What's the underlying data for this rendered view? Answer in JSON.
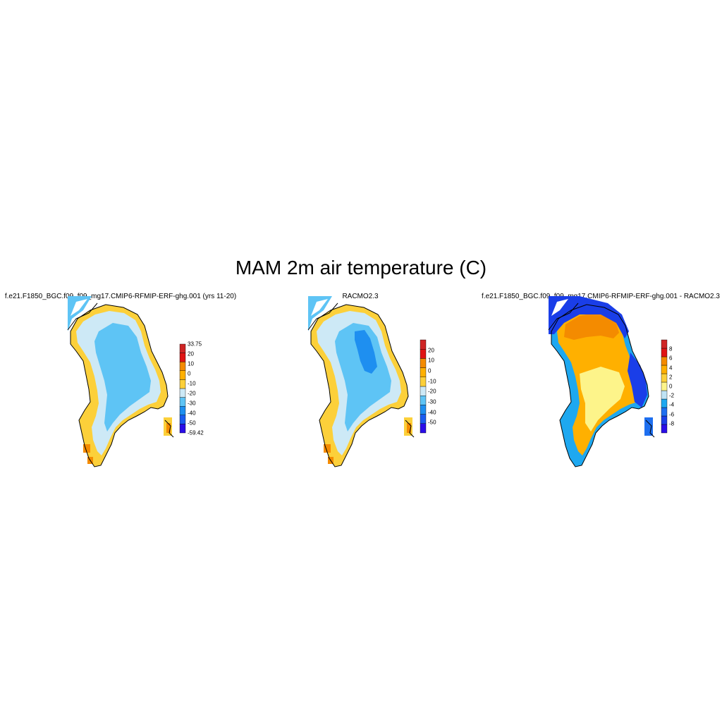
{
  "title": "MAM 2m air temperature (C)",
  "panels": [
    {
      "title": "f.e21.F1850_BGC.f09_f09_mg17.CMIP6-RFMIP-ERF-ghg.001 (yrs 11-20)",
      "colorbar": {
        "colors": [
          "#2a0ee8",
          "#1a5cf0",
          "#1e8ff0",
          "#5ec4f5",
          "#cde9f6",
          "#fcd03a",
          "#ffb000",
          "#f48b00",
          "#e01414",
          "#cf2525"
        ],
        "labels": [
          "-59.42",
          "-50",
          "-40",
          "-30",
          "-20",
          "-10",
          "0",
          "10",
          "20",
          "33.75"
        ]
      },
      "field_class": "model",
      "dominant_color": "#5ec4f5"
    },
    {
      "title": "RACMO2.3",
      "colorbar": {
        "colors": [
          "#2a0ee8",
          "#1a5cf0",
          "#1e8ff0",
          "#5ec4f5",
          "#cde9f6",
          "#fcd03a",
          "#ffb000",
          "#f48b00",
          "#e01414",
          "#cf2525"
        ],
        "labels": [
          "-50",
          "-40",
          "-30",
          "-20",
          "-10",
          "0",
          "10",
          "20"
        ]
      },
      "field_class": "obs",
      "dominant_color": "#5ec4f5"
    },
    {
      "title": "f.e21.F1850_BGC.f09_f09_mg17.CMIP6-RFMIP-ERF-ghg.001 - RACMO2.3",
      "colorbar": {
        "colors": [
          "#2a0ee8",
          "#1a3ee8",
          "#1e6ff0",
          "#1ea8f0",
          "#bfe3f5",
          "#fdf48a",
          "#fcd03a",
          "#ffb000",
          "#f48b00",
          "#e01414",
          "#cf2525"
        ],
        "labels": [
          "-8",
          "-6",
          "-4",
          "-2",
          "0",
          "2",
          "4",
          "6",
          "8"
        ]
      },
      "field_class": "diff",
      "dominant_color": "#ffb000"
    }
  ]
}
